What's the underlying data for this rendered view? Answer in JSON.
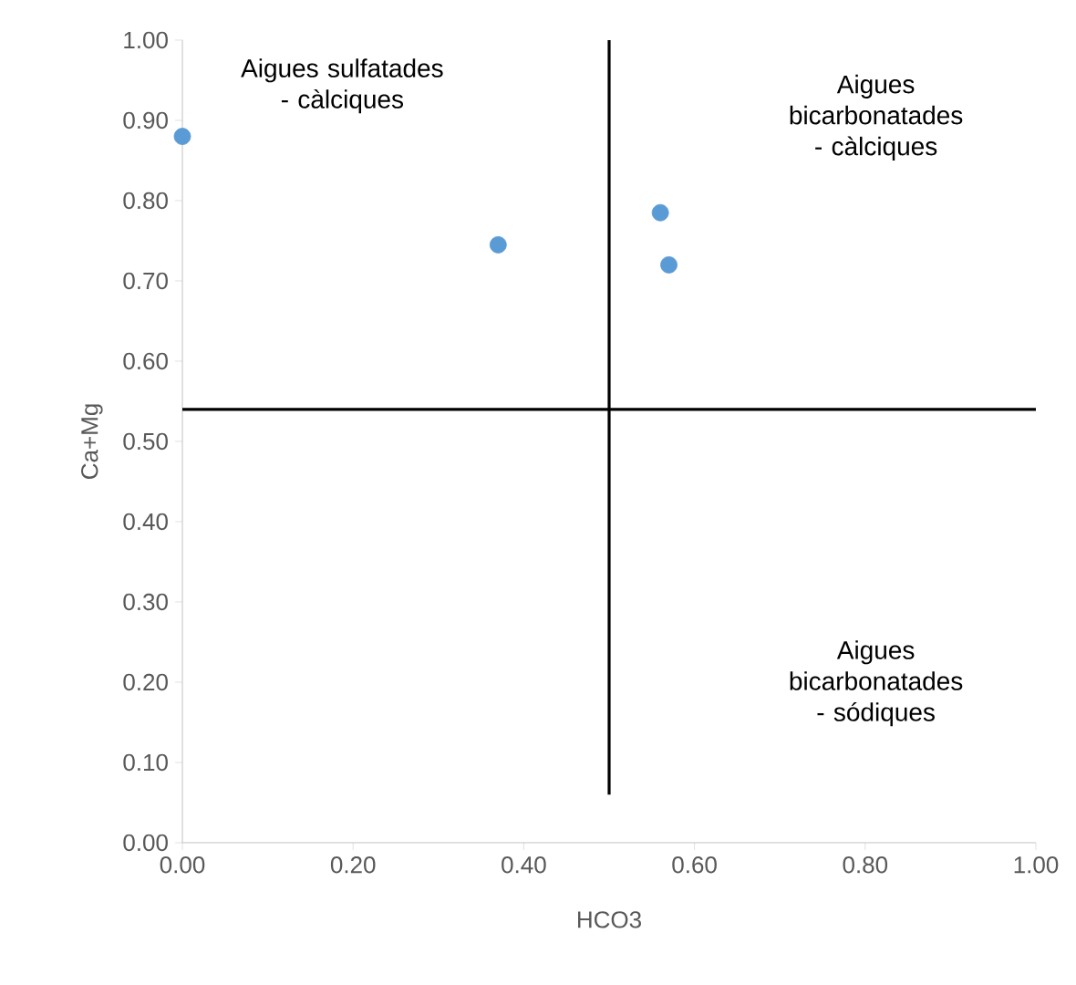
{
  "chart_data": {
    "type": "scatter",
    "xlabel": "HCO3",
    "ylabel": "Ca+Mg",
    "x": [
      0.0,
      0.37,
      0.56,
      0.57
    ],
    "values": [
      0.88,
      0.745,
      0.785,
      0.72
    ],
    "color": "#5b9bd5",
    "marker": "circle",
    "xlim": [
      0,
      1
    ],
    "ylim": [
      0,
      1
    ],
    "xticks": [
      {
        "value": 0,
        "label": "0.00"
      },
      {
        "value": 0.2,
        "label": "0.20"
      },
      {
        "value": 0.4,
        "label": "0.40"
      },
      {
        "value": 0.6,
        "label": "0.60"
      },
      {
        "value": 0.8,
        "label": "0.80"
      },
      {
        "value": 1,
        "label": "1.00"
      }
    ],
    "yticks": [
      {
        "value": 0,
        "label": "0.00"
      },
      {
        "value": 0.1,
        "label": "0.10"
      },
      {
        "value": 0.2,
        "label": "0.20"
      },
      {
        "value": 0.3,
        "label": "0.30"
      },
      {
        "value": 0.4,
        "label": "0.40"
      },
      {
        "value": 0.5,
        "label": "0.50"
      },
      {
        "value": 0.6,
        "label": "0.60"
      },
      {
        "value": 0.7,
        "label": "0.70"
      },
      {
        "value": 0.8,
        "label": "0.80"
      },
      {
        "value": 0.9,
        "label": "0.90"
      },
      {
        "value": 1,
        "label": "1.00"
      }
    ],
    "ref_lines": [
      {
        "axis": "y",
        "value": 0.54,
        "color": "#000000"
      },
      {
        "axis": "x",
        "value": 0.5,
        "color": "#000000"
      }
    ],
    "annotations": [
      "Aigues sulfatades - càlciques",
      "Aigues bicarbonatades - càlciques",
      "Aigues bicarbonatades - sódiques"
    ],
    "grid": false
  }
}
